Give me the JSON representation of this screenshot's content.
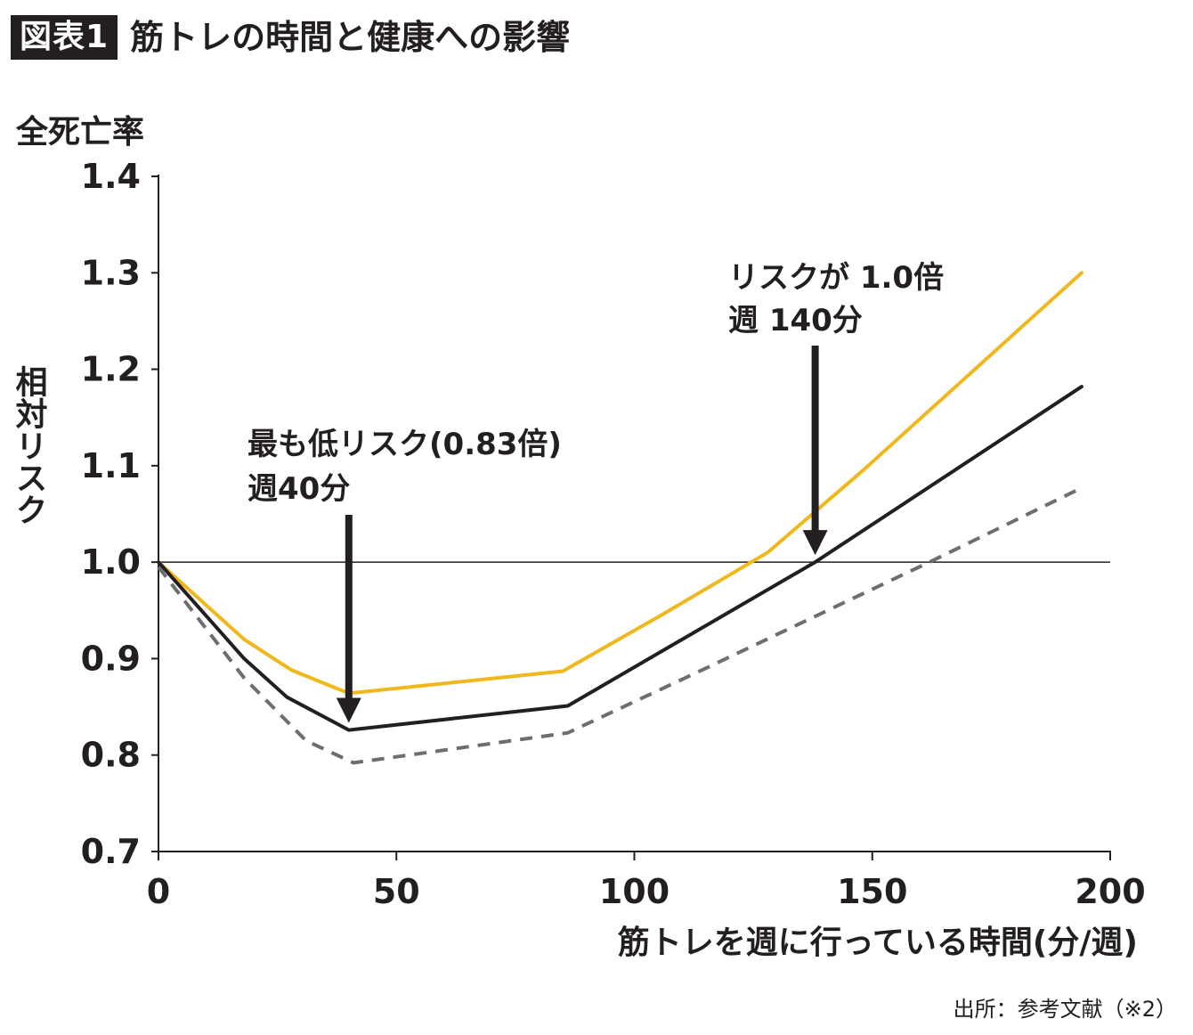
{
  "header": {
    "badge": "図表1",
    "title": "筋トレの時間と健康への影響"
  },
  "source": "出所：参考文献（※2）",
  "chart_data": {
    "type": "line",
    "title": "筋トレの時間と健康への影響",
    "ylabel_top": "全死亡率",
    "ylabel": "相対リスク",
    "xlabel": "筋トレを週に行っている時間(分/週)",
    "xlim": [
      0,
      200
    ],
    "ylim": [
      0.7,
      1.4
    ],
    "xticks": [
      0,
      50,
      100,
      150,
      200
    ],
    "yticks": [
      0.7,
      0.8,
      0.9,
      1.0,
      1.1,
      1.2,
      1.3,
      1.4
    ],
    "xtick_labels": [
      "0",
      "50",
      "100",
      "150",
      "200"
    ],
    "ytick_labels": [
      "0.7",
      "0.8",
      "0.9",
      "1.0",
      "1.1",
      "1.2",
      "1.3",
      "1.4"
    ],
    "reference_line": 1.0,
    "grid": false,
    "series": [
      {
        "color": "#f0b81c",
        "style": "solid",
        "x": [
          0,
          18,
          28,
          40,
          85,
          106,
          128,
          148,
          194
        ],
        "y": [
          1.0,
          0.92,
          0.888,
          0.864,
          0.887,
          0.946,
          1.01,
          1.095,
          1.3
        ]
      },
      {
        "color": "#231f20",
        "style": "solid",
        "x": [
          0,
          18,
          27,
          40,
          86,
          138,
          194
        ],
        "y": [
          1.0,
          0.9,
          0.86,
          0.826,
          0.851,
          1.0,
          1.182
        ]
      },
      {
        "color": "#6d6e71",
        "style": "dashed",
        "x": [
          0,
          18,
          31,
          41,
          86,
          115,
          162,
          194
        ],
        "y": [
          0.995,
          0.88,
          0.815,
          0.792,
          0.823,
          0.89,
          1.0,
          1.077
        ]
      }
    ],
    "annotations": [
      {
        "lines": [
          "最も低リスク(0.83倍)",
          "週40分"
        ],
        "arrow_x": 40,
        "arrow_y": 0.826
      },
      {
        "lines": [
          "リスクが 1.0倍",
          "週 140分"
        ],
        "arrow_x": 138,
        "arrow_y": 1.0
      }
    ]
  }
}
